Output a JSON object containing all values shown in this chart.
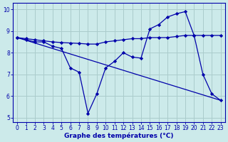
{
  "xlabel": "Graphe des températures (°C)",
  "bg_color": "#cceaea",
  "grid_color": "#aacccc",
  "line_color": "#0000aa",
  "xlim": [
    -0.5,
    23.5
  ],
  "ylim": [
    4.8,
    10.3
  ],
  "xticks": [
    0,
    1,
    2,
    3,
    4,
    5,
    6,
    7,
    8,
    9,
    10,
    11,
    12,
    13,
    14,
    15,
    16,
    17,
    18,
    19,
    20,
    21,
    22,
    23
  ],
  "yticks": [
    5,
    6,
    7,
    8,
    9,
    10
  ],
  "curve1_x": [
    0,
    1,
    2,
    3,
    4,
    5,
    6,
    7,
    8,
    9,
    10,
    11,
    12,
    13,
    14,
    15,
    16,
    17,
    18,
    19,
    20,
    21,
    22,
    23
  ],
  "curve1_y": [
    8.7,
    8.6,
    8.5,
    8.5,
    8.3,
    8.2,
    7.3,
    7.1,
    5.2,
    6.1,
    7.3,
    7.6,
    8.0,
    7.8,
    7.75,
    9.1,
    9.3,
    9.65,
    9.8,
    9.9,
    8.8,
    7.0,
    6.1,
    5.8
  ],
  "curve2_x": [
    0,
    1,
    2,
    3,
    4,
    5,
    6,
    7,
    8,
    9,
    10,
    11,
    12,
    13,
    14,
    15,
    16,
    17,
    18,
    19,
    20,
    21,
    22,
    23
  ],
  "curve2_y": [
    8.7,
    8.65,
    8.6,
    8.55,
    8.5,
    8.47,
    8.45,
    8.43,
    8.4,
    8.4,
    8.5,
    8.55,
    8.6,
    8.65,
    8.65,
    8.7,
    8.7,
    8.7,
    8.75,
    8.8,
    8.8,
    8.8,
    8.8,
    8.8
  ],
  "curve3_x": [
    0,
    23
  ],
  "curve3_y": [
    8.7,
    5.8
  ]
}
